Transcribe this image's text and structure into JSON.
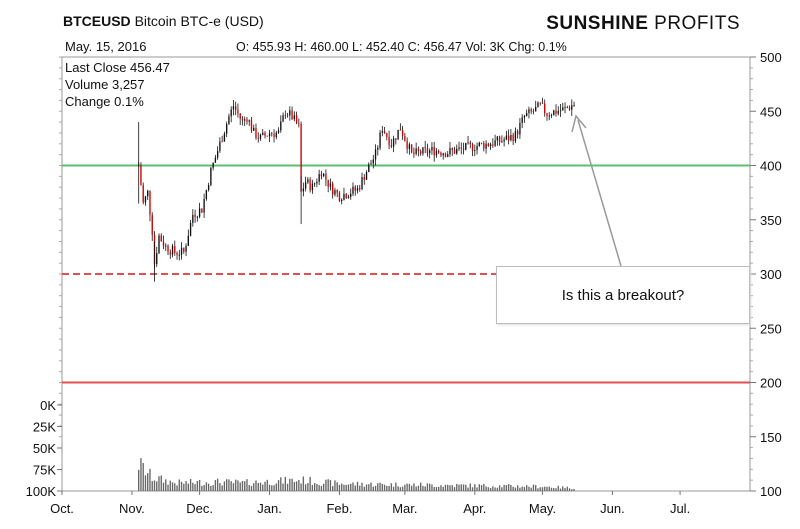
{
  "header": {
    "symbol": "BTCEUSD",
    "name": "Bitcoin BTC-e (USD)",
    "date": "May. 15, 2016",
    "ohlc": "O: 455.93 H: 460.00 L: 452.40 C: 456.47 Vol: 3K Chg: 0.1%"
  },
  "brand": {
    "bold": "SUNSHINE",
    "light": "PROFITS"
  },
  "info": {
    "last_close": "Last Close 456.47",
    "volume": "Volume 3,257",
    "change": "Change 0.1%"
  },
  "annotation": {
    "text": "Is this a breakout?"
  },
  "colors": {
    "up": "#111111",
    "down": "#cc0000",
    "support_green": "#5cbf73",
    "resistance_red": "#e05050",
    "volume": "#666666"
  },
  "chart_data": {
    "type": "candlestick",
    "x_ticks": [
      "Oct.",
      "Nov.",
      "Dec.",
      "Jan.",
      "Feb.",
      "Mar.",
      "Apr.",
      "May.",
      "Jun.",
      "Jul."
    ],
    "y_ticks": [
      500,
      450,
      400,
      350,
      300,
      250,
      200,
      150,
      100
    ],
    "ylim": [
      100,
      500
    ],
    "volume_ticks": [
      "100K",
      "75K",
      "50K",
      "25K",
      "0K"
    ],
    "volume_values": [
      0,
      25000,
      50000,
      75000,
      100000
    ],
    "volume_max": 100000,
    "horizontal_lines": [
      {
        "value": 400,
        "style": "solid",
        "color": "#5cbf73"
      },
      {
        "value": 300,
        "style": "dashed",
        "color": "#e05050"
      },
      {
        "value": 200,
        "style": "solid",
        "color": "#e05050"
      }
    ],
    "price_path": [
      [
        "2015-11-04",
        400
      ],
      [
        "2015-11-06",
        365
      ],
      [
        "2015-11-08",
        375
      ],
      [
        "2015-11-10",
        340
      ],
      [
        "2015-11-11",
        310
      ],
      [
        "2015-11-13",
        335
      ],
      [
        "2015-11-16",
        325
      ],
      [
        "2015-11-20",
        320
      ],
      [
        "2015-11-24",
        320
      ],
      [
        "2015-11-28",
        355
      ],
      [
        "2015-12-02",
        360
      ],
      [
        "2015-12-06",
        395
      ],
      [
        "2015-12-10",
        420
      ],
      [
        "2015-12-14",
        445
      ],
      [
        "2015-12-16",
        455
      ],
      [
        "2015-12-20",
        440
      ],
      [
        "2015-12-22",
        445
      ],
      [
        "2015-12-25",
        430
      ],
      [
        "2015-12-28",
        425
      ],
      [
        "2016-01-01",
        430
      ],
      [
        "2016-01-05",
        430
      ],
      [
        "2016-01-08",
        450
      ],
      [
        "2016-01-11",
        445
      ],
      [
        "2016-01-14",
        435
      ],
      [
        "2016-01-15",
        375
      ],
      [
        "2016-01-17",
        385
      ],
      [
        "2016-01-20",
        380
      ],
      [
        "2016-01-24",
        395
      ],
      [
        "2016-01-28",
        380
      ],
      [
        "2016-02-01",
        372
      ],
      [
        "2016-02-05",
        375
      ],
      [
        "2016-02-09",
        378
      ],
      [
        "2016-02-13",
        395
      ],
      [
        "2016-02-17",
        410
      ],
      [
        "2016-02-20",
        435
      ],
      [
        "2016-02-24",
        420
      ],
      [
        "2016-02-28",
        435
      ],
      [
        "2016-03-02",
        420
      ],
      [
        "2016-03-04",
        410
      ],
      [
        "2016-03-08",
        412
      ],
      [
        "2016-03-14",
        414
      ],
      [
        "2016-03-20",
        412
      ],
      [
        "2016-03-26",
        415
      ],
      [
        "2016-04-01",
        418
      ],
      [
        "2016-04-07",
        420
      ],
      [
        "2016-04-13",
        423
      ],
      [
        "2016-04-19",
        428
      ],
      [
        "2016-04-23",
        445
      ],
      [
        "2016-04-27",
        450
      ],
      [
        "2016-04-30",
        455
      ],
      [
        "2016-05-03",
        448
      ],
      [
        "2016-05-07",
        450
      ],
      [
        "2016-05-11",
        452
      ],
      [
        "2016-05-15",
        456.47
      ]
    ],
    "volume_path": [
      [
        "2015-11-04",
        30000
      ],
      [
        "2015-11-10",
        15000
      ],
      [
        "2015-11-20",
        9000
      ],
      [
        "2015-12-10",
        10000
      ],
      [
        "2015-12-20",
        9000
      ],
      [
        "2016-01-15",
        12000
      ],
      [
        "2016-02-01",
        8000
      ],
      [
        "2016-03-01",
        7000
      ],
      [
        "2016-04-01",
        6000
      ],
      [
        "2016-05-01",
        5000
      ],
      [
        "2016-05-15",
        3257
      ]
    ]
  }
}
